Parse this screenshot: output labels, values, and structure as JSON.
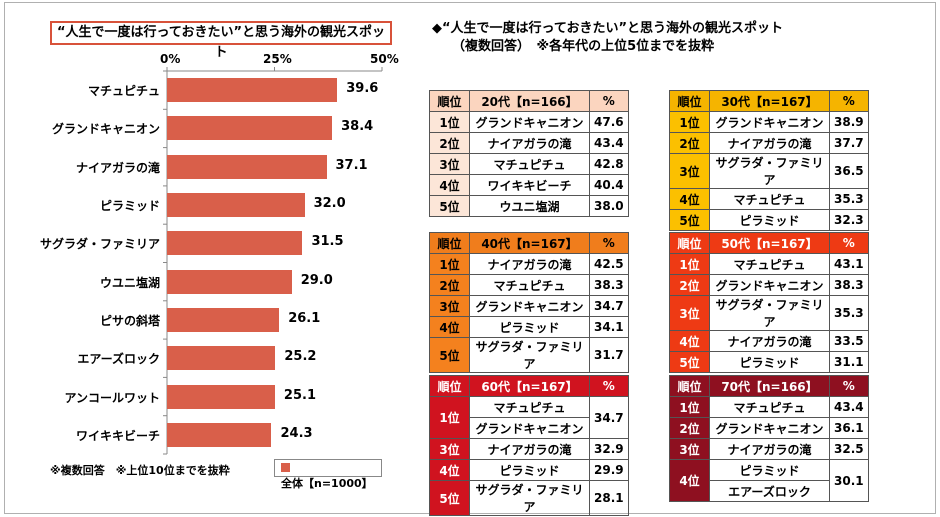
{
  "chart_data": {
    "type": "bar",
    "orientation": "horizontal",
    "title": "“人生で一度は行っておきたい”と思う海外の観光スポット",
    "categories": [
      "マチュピチュ",
      "グランドキャニオン",
      "ナイアガラの滝",
      "ピラミッド",
      "サグラダ・ファミリア",
      "ウユニ塩湖",
      "ピサの斜塔",
      "エアーズロック",
      "アンコールワット",
      "ワイキキビーチ"
    ],
    "series": [
      {
        "name": "全体【n=1000】",
        "values": [
          39.6,
          38.4,
          37.1,
          32.0,
          31.5,
          29.0,
          26.1,
          25.2,
          25.1,
          24.3
        ]
      }
    ],
    "value_labels": [
      "39.6",
      "38.4",
      "37.1",
      "32.0",
      "31.5",
      "29.0",
      "26.1",
      "25.2",
      "25.1",
      "24.3"
    ],
    "xlim": [
      0,
      50
    ],
    "ticks": [
      "0%",
      "25%",
      "50%"
    ],
    "bar_color": "#d95f4a",
    "legend_placement": "bottom-right",
    "note": "※複数回答　※上位10位までを抜粋"
  },
  "right_panel": {
    "title": "◆“人生で一度は行っておきたい”と思う海外の観光スポット",
    "subtitle": "（複数回答）　※各年代の上位5位までを抜粋",
    "header_rank": "順位",
    "header_pct": "%",
    "tables": [
      {
        "id": "20s",
        "header": "20代【n=166】",
        "head_bg": "#fbd5bf",
        "rank_bg": "#fce6d8",
        "text_color": "#000000",
        "rows": [
          {
            "rank": "1位",
            "names": [
              "グランドキャニオン"
            ],
            "value": "47.6"
          },
          {
            "rank": "2位",
            "names": [
              "ナイアガラの滝"
            ],
            "value": "43.4"
          },
          {
            "rank": "3位",
            "names": [
              "マチュピチュ"
            ],
            "value": "42.8"
          },
          {
            "rank": "4位",
            "names": [
              "ワイキキビーチ"
            ],
            "value": "40.4"
          },
          {
            "rank": "5位",
            "names": [
              "ウユニ塩湖"
            ],
            "value": "38.0"
          }
        ]
      },
      {
        "id": "30s",
        "header": "30代【n=167】",
        "head_bg": "#f5b400",
        "rank_bg": "#fbc000",
        "text_color": "#000000",
        "rows": [
          {
            "rank": "1位",
            "names": [
              "グランドキャニオン"
            ],
            "value": "38.9"
          },
          {
            "rank": "2位",
            "names": [
              "ナイアガラの滝"
            ],
            "value": "37.7"
          },
          {
            "rank": "3位",
            "names": [
              "サグラダ・ファミリア"
            ],
            "value": "36.5"
          },
          {
            "rank": "4位",
            "names": [
              "マチュピチュ"
            ],
            "value": "35.3"
          },
          {
            "rank": "5位",
            "names": [
              "ピラミッド"
            ],
            "value": "32.3"
          }
        ]
      },
      {
        "id": "40s",
        "header": "40代【n=167】",
        "head_bg": "#f07d1c",
        "rank_bg": "#f4811e",
        "text_color": "#000000",
        "rows": [
          {
            "rank": "1位",
            "names": [
              "ナイアガラの滝"
            ],
            "value": "42.5"
          },
          {
            "rank": "2位",
            "names": [
              "マチュピチュ"
            ],
            "value": "38.3"
          },
          {
            "rank": "3位",
            "names": [
              "グランドキャニオン"
            ],
            "value": "34.7"
          },
          {
            "rank": "4位",
            "names": [
              "ピラミッド"
            ],
            "value": "34.1"
          },
          {
            "rank": "5位",
            "names": [
              "サグラダ・ファミリア"
            ],
            "value": "31.7"
          }
        ]
      },
      {
        "id": "50s",
        "header": "50代【n=167】",
        "head_bg": "#ee3a14",
        "rank_bg": "#ee3a14",
        "text_color": "#ffffff",
        "rows": [
          {
            "rank": "1位",
            "names": [
              "マチュピチュ"
            ],
            "value": "43.1"
          },
          {
            "rank": "2位",
            "names": [
              "グランドキャニオン"
            ],
            "value": "38.3"
          },
          {
            "rank": "3位",
            "names": [
              "サグラダ・ファミリア"
            ],
            "value": "35.3"
          },
          {
            "rank": "4位",
            "names": [
              "ナイアガラの滝"
            ],
            "value": "33.5"
          },
          {
            "rank": "5位",
            "names": [
              "ピラミッド"
            ],
            "value": "31.1"
          }
        ]
      },
      {
        "id": "60s",
        "header": "60代【n=167】",
        "head_bg": "#d0131f",
        "rank_bg": "#d0131f",
        "text_color": "#ffffff",
        "rows": [
          {
            "rank": "1位",
            "names": [
              "マチュピチュ",
              "グランドキャニオン"
            ],
            "value": "34.7"
          },
          {
            "rank": "3位",
            "names": [
              "ナイアガラの滝"
            ],
            "value": "32.9"
          },
          {
            "rank": "4位",
            "names": [
              "ピラミッド"
            ],
            "value": "29.9"
          },
          {
            "rank": "5位",
            "names": [
              "サグラダ・ファミリア"
            ],
            "value": "28.1"
          }
        ]
      },
      {
        "id": "70s",
        "header": "70代【n=166】",
        "head_bg": "#8e1020",
        "rank_bg": "#8e1020",
        "text_color": "#ffffff",
        "rows": [
          {
            "rank": "1位",
            "names": [
              "マチュピチュ"
            ],
            "value": "43.4"
          },
          {
            "rank": "2位",
            "names": [
              "グランドキャニオン"
            ],
            "value": "36.1"
          },
          {
            "rank": "3位",
            "names": [
              "ナイアガラの滝"
            ],
            "value": "32.5"
          },
          {
            "rank": "4位",
            "names": [
              "ピラミッド",
              "エアーズロック"
            ],
            "value": "30.1"
          }
        ]
      }
    ]
  }
}
